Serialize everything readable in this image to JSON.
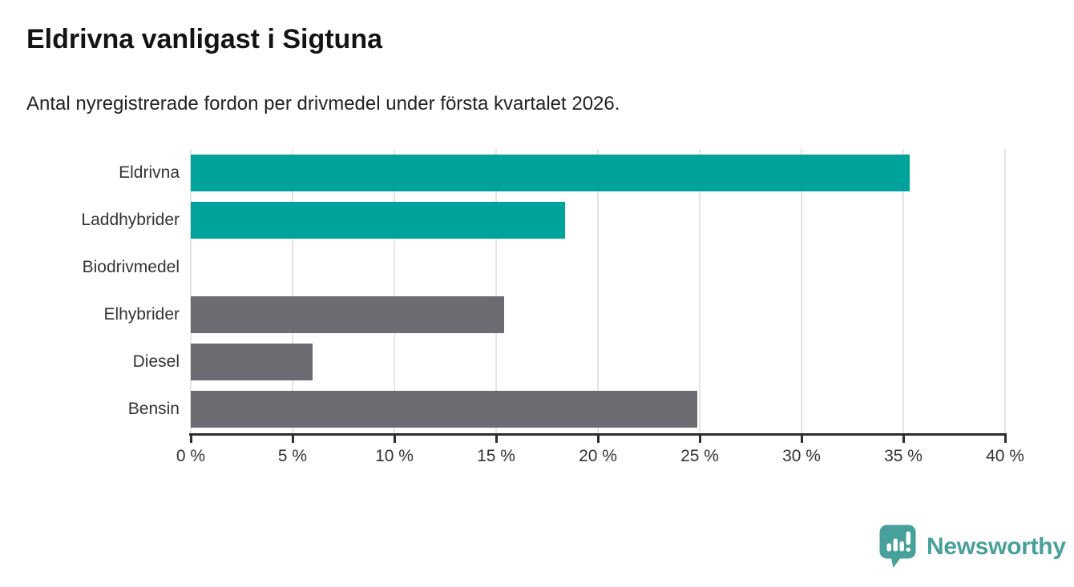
{
  "page": {
    "title": "Eldrivna vanligast i Sigtuna",
    "subtitle": "Antal nyregistrerade fordon per drivmedel under första kvartalet 2026."
  },
  "chart_data": {
    "type": "bar",
    "orientation": "horizontal",
    "title": "Eldrivna vanligast i Sigtuna",
    "subtitle": "Antal nyregistrerade fordon per drivmedel under första kvartalet 2026.",
    "categories": [
      "Eldrivna",
      "Laddhybrider",
      "Biodrivmedel",
      "Elhybrider",
      "Diesel",
      "Bensin"
    ],
    "values": [
      35.3,
      18.4,
      0,
      15.4,
      6.0,
      24.9
    ],
    "unit": "%",
    "bar_colors": [
      "#00a39b",
      "#00a39b",
      "#00a39b",
      "#6e6c73",
      "#6e6c73",
      "#6e6c73"
    ],
    "xlim": [
      0,
      40
    ],
    "x_ticks": [
      {
        "value": 0,
        "label": "0 %"
      },
      {
        "value": 5,
        "label": "5 %"
      },
      {
        "value": 10,
        "label": "10 %"
      },
      {
        "value": 15,
        "label": "15 %"
      },
      {
        "value": 20,
        "label": "20 %"
      },
      {
        "value": 25,
        "label": "25 %"
      },
      {
        "value": 30,
        "label": "30 %"
      },
      {
        "value": 35,
        "label": "35 %"
      },
      {
        "value": 40,
        "label": "40 %"
      }
    ],
    "grid": "vertical-only",
    "legend": "none"
  },
  "colors": {
    "teal": "#00a39b",
    "gray": "#6e6c73",
    "axis": "#2e2e2e",
    "gridline": "#e4e4e4",
    "label_text": "#333333",
    "brand": "#47a09a"
  },
  "footer": {
    "brand": "Newsworthy",
    "logo_icon": "bar-chart-speech-bubble-icon"
  }
}
